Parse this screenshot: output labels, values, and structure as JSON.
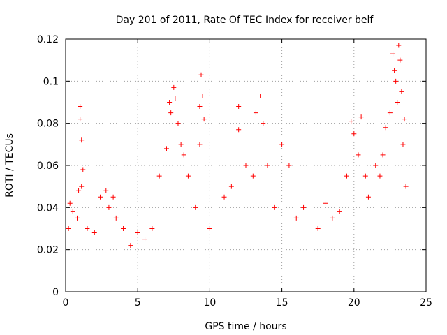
{
  "chart_data": {
    "type": "scatter",
    "title": "Day 201 of 2011, Rate Of TEC Index for receiver belf",
    "xlabel": "GPS time / hours",
    "ylabel": "ROTI / TECUs",
    "xlim": [
      0,
      25
    ],
    "ylim": [
      0,
      0.12
    ],
    "xticks": [
      0,
      5,
      10,
      15,
      20,
      25
    ],
    "xtick_labels": [
      "0",
      "5",
      "10",
      "15",
      "20",
      "25"
    ],
    "yticks": [
      0,
      0.02,
      0.04,
      0.06,
      0.08,
      0.1,
      0.12
    ],
    "ytick_labels": [
      "0",
      "0.02",
      "0.04",
      "0.06",
      "0.08",
      "0.1",
      "0.12"
    ],
    "grid": true,
    "marker": "plus",
    "color": "#ff0000",
    "series": [
      {
        "points": [
          [
            0.2,
            0.03
          ],
          [
            0.3,
            0.042
          ],
          [
            0.5,
            0.038
          ],
          [
            0.8,
            0.035
          ],
          [
            0.9,
            0.048
          ],
          [
            1.0,
            0.088
          ],
          [
            1.0,
            0.082
          ],
          [
            1.1,
            0.072
          ],
          [
            1.2,
            0.058
          ],
          [
            1.1,
            0.05
          ],
          [
            1.5,
            0.03
          ],
          [
            2.0,
            0.028
          ],
          [
            2.4,
            0.045
          ],
          [
            2.8,
            0.048
          ],
          [
            3.0,
            0.04
          ],
          [
            3.3,
            0.045
          ],
          [
            3.5,
            0.035
          ],
          [
            4.0,
            0.03
          ],
          [
            4.5,
            0.022
          ],
          [
            5.0,
            0.028
          ],
          [
            5.5,
            0.025
          ],
          [
            6.0,
            0.03
          ],
          [
            6.5,
            0.055
          ],
          [
            7.0,
            0.068
          ],
          [
            7.2,
            0.09
          ],
          [
            7.3,
            0.085
          ],
          [
            7.5,
            0.097
          ],
          [
            7.6,
            0.092
          ],
          [
            7.8,
            0.08
          ],
          [
            8.0,
            0.07
          ],
          [
            8.2,
            0.065
          ],
          [
            8.5,
            0.055
          ],
          [
            9.0,
            0.04
          ],
          [
            9.3,
            0.088
          ],
          [
            9.3,
            0.07
          ],
          [
            9.4,
            0.103
          ],
          [
            9.5,
            0.093
          ],
          [
            9.6,
            0.082
          ],
          [
            10.0,
            0.03
          ],
          [
            11.0,
            0.045
          ],
          [
            11.5,
            0.05
          ],
          [
            12.0,
            0.088
          ],
          [
            12.0,
            0.077
          ],
          [
            12.5,
            0.06
          ],
          [
            13.0,
            0.055
          ],
          [
            13.2,
            0.085
          ],
          [
            13.5,
            0.093
          ],
          [
            13.7,
            0.08
          ],
          [
            14.0,
            0.06
          ],
          [
            14.5,
            0.04
          ],
          [
            15.0,
            0.07
          ],
          [
            15.5,
            0.06
          ],
          [
            16.0,
            0.035
          ],
          [
            16.5,
            0.04
          ],
          [
            17.5,
            0.03
          ],
          [
            18.0,
            0.042
          ],
          [
            18.5,
            0.035
          ],
          [
            19.0,
            0.038
          ],
          [
            19.5,
            0.055
          ],
          [
            19.8,
            0.081
          ],
          [
            20.0,
            0.075
          ],
          [
            20.3,
            0.065
          ],
          [
            20.5,
            0.083
          ],
          [
            20.8,
            0.055
          ],
          [
            21.0,
            0.045
          ],
          [
            21.5,
            0.06
          ],
          [
            21.8,
            0.055
          ],
          [
            22.0,
            0.065
          ],
          [
            22.2,
            0.078
          ],
          [
            22.5,
            0.085
          ],
          [
            22.7,
            0.113
          ],
          [
            22.8,
            0.105
          ],
          [
            22.9,
            0.1
          ],
          [
            23.0,
            0.09
          ],
          [
            23.1,
            0.117
          ],
          [
            23.2,
            0.11
          ],
          [
            23.3,
            0.095
          ],
          [
            23.4,
            0.07
          ],
          [
            23.5,
            0.082
          ],
          [
            23.6,
            0.05
          ]
        ]
      }
    ]
  }
}
